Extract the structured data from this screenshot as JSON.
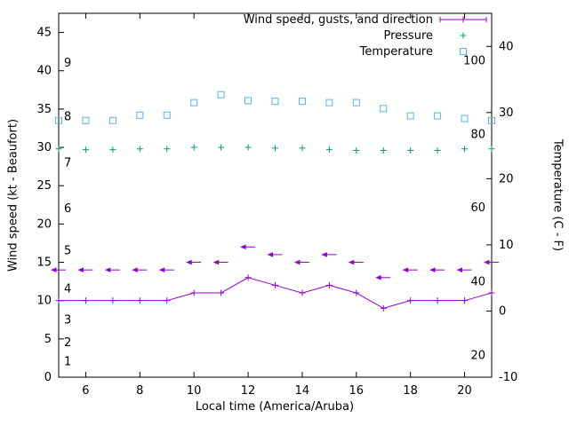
{
  "chart_data": {
    "type": "line",
    "title": "",
    "xlabel": "Local time (America/Aruba)",
    "ylabel_left": "Wind speed (kt - Beaufort)",
    "ylabel_right": "Temperature (C - F)",
    "xlim": [
      5,
      21
    ],
    "ylim_left": [
      0,
      47.5
    ],
    "ylim_right": [
      -10,
      45
    ],
    "x_ticks": [
      6,
      8,
      10,
      12,
      14,
      16,
      18,
      20
    ],
    "y_ticks_left": [
      0,
      5,
      10,
      15,
      20,
      25,
      30,
      35,
      40,
      45
    ],
    "y_ticks_right": [
      -10,
      0,
      10,
      20,
      30,
      40
    ],
    "grid": false,
    "legend_position": "top-right-inside",
    "beaufort_labels": [
      {
        "label": "1",
        "kt": 2
      },
      {
        "label": "2",
        "kt": 4.5
      },
      {
        "label": "3",
        "kt": 7.5
      },
      {
        "label": "4",
        "kt": 11.5
      },
      {
        "label": "5",
        "kt": 16.5
      },
      {
        "label": "6",
        "kt": 22
      },
      {
        "label": "7",
        "kt": 28
      },
      {
        "label": "8",
        "kt": 34
      },
      {
        "label": "9",
        "kt": 41
      }
    ],
    "fahrenheit_labels": [
      {
        "label": "20",
        "c": -6.7
      },
      {
        "label": "40",
        "c": 4.4
      },
      {
        "label": "60",
        "c": 15.6
      },
      {
        "label": "80",
        "c": 26.7
      },
      {
        "label": "100",
        "c": 37.8
      }
    ],
    "x": [
      5,
      6,
      7,
      8,
      9,
      10,
      11,
      12,
      13,
      14,
      15,
      16,
      17,
      18,
      19,
      20,
      21
    ],
    "series": [
      {
        "name": "Wind speed, gusts, and direction",
        "type": "line+plus",
        "axis": "left",
        "color": "#9400d3",
        "values": [
          10,
          10,
          10,
          10,
          10,
          11,
          11,
          13,
          12,
          11,
          12,
          11,
          9,
          10,
          10,
          10,
          11
        ]
      },
      {
        "name": "Wind gusts with direction arrows",
        "type": "arrow",
        "axis": "left",
        "color": "#9400d3",
        "values": [
          14,
          14,
          14,
          14,
          14,
          15,
          15,
          17,
          16,
          15,
          16,
          15,
          13,
          14,
          14,
          14,
          15
        ],
        "directions_deg_from": [
          90,
          90,
          90,
          90,
          90,
          90,
          90,
          90,
          90,
          90,
          90,
          90,
          90,
          90,
          90,
          90,
          90
        ]
      },
      {
        "name": "Pressure",
        "type": "plus",
        "axis": "left",
        "color": "#009e73",
        "values": [
          29.8,
          29.7,
          29.7,
          29.8,
          29.8,
          30.0,
          30.0,
          30.0,
          29.9,
          29.9,
          29.7,
          29.6,
          29.6,
          29.6,
          29.6,
          29.8,
          29.8
        ]
      },
      {
        "name": "Temperature",
        "type": "square",
        "axis": "right",
        "color": "#56b4e9",
        "values": [
          28.8,
          28.8,
          28.8,
          29.6,
          29.6,
          31.5,
          32.7,
          31.8,
          31.7,
          31.7,
          31.5,
          31.5,
          30.6,
          29.5,
          29.5,
          29.1,
          28.8
        ]
      }
    ],
    "legend": [
      {
        "label": "Wind speed, gusts, and direction",
        "color": "#9400d3",
        "marker": "line+plus"
      },
      {
        "label": "Pressure",
        "color": "#009e73",
        "marker": "plus"
      },
      {
        "label": "Temperature",
        "color": "#56b4e9",
        "marker": "square"
      }
    ]
  }
}
